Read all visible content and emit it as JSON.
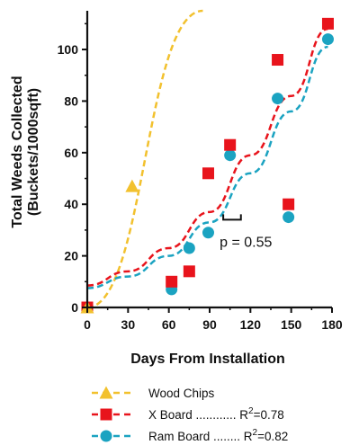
{
  "chart_data": {
    "type": "scatter",
    "xlabel": "Days From Installation",
    "ylabel_line1": "Total Weeds Collected",
    "ylabel_line2": "(Buckets/1000sqft)",
    "xlim": [
      0,
      180
    ],
    "ylim": [
      0,
      115
    ],
    "xticks": [
      0,
      30,
      60,
      90,
      120,
      150,
      180
    ],
    "yticks": [
      0,
      20,
      40,
      60,
      80,
      100
    ],
    "grid": false,
    "legend_position": "bottom",
    "series": [
      {
        "name": "Wood Chips",
        "marker": "triangle",
        "color": "#F2C12E",
        "points": [
          [
            0,
            0
          ],
          [
            33,
            47
          ]
        ],
        "fit_line": [
          [
            0,
            0
          ],
          [
            85,
            115
          ]
        ]
      },
      {
        "name": "X Board",
        "marker": "square",
        "color": "#E8141C",
        "points": [
          [
            0,
            0
          ],
          [
            62,
            10
          ],
          [
            75,
            14
          ],
          [
            89,
            52
          ],
          [
            105,
            63
          ],
          [
            140,
            96
          ],
          [
            148,
            40
          ],
          [
            177,
            110
          ]
        ],
        "fit_line": [
          [
            0,
            8.5
          ],
          [
            30,
            14
          ],
          [
            60,
            23
          ],
          [
            90,
            37
          ],
          [
            120,
            59
          ],
          [
            150,
            82
          ],
          [
            177,
            108
          ]
        ],
        "r2_label": "R",
        "r2_sup": "2",
        "r2_value": "=0.78",
        "legend_dots": " ............ "
      },
      {
        "name": "Ram Board",
        "marker": "circle",
        "color": "#1BA3C1",
        "points": [
          [
            0,
            0
          ],
          [
            62,
            7
          ],
          [
            75,
            23
          ],
          [
            89,
            29
          ],
          [
            105,
            59
          ],
          [
            140,
            81
          ],
          [
            148,
            35
          ],
          [
            177,
            104
          ]
        ],
        "fit_line": [
          [
            0,
            7.5
          ],
          [
            30,
            12
          ],
          [
            60,
            20
          ],
          [
            90,
            33
          ],
          [
            120,
            52
          ],
          [
            150,
            76
          ],
          [
            177,
            101
          ]
        ],
        "r2_label": "R",
        "r2_sup": "2",
        "r2_value": "=0.82",
        "legend_dots": " ........ "
      }
    ],
    "annotation": {
      "text": "p = 0.55",
      "bracket_x": [
        100,
        113
      ],
      "bracket_y": 34
    }
  }
}
